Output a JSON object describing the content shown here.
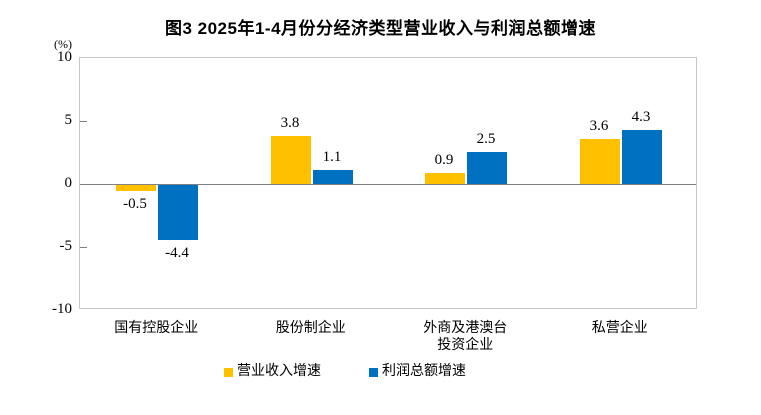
{
  "title": "图3 2025年1-4月份分经济类型营业收入与利润总额增速",
  "y_axis": {
    "unit_label": "(%)"
  },
  "chart_data": {
    "type": "bar",
    "title": "图3 2025年1-4月份分经济类型营业收入与利润总额增速",
    "categories": [
      "国有控股企业",
      "股份制企业",
      "外商及港澳台\n投资企业",
      "私营企业"
    ],
    "series": [
      {
        "name": "营业收入增速",
        "color": "#FFC000",
        "values": [
          -0.5,
          3.8,
          0.9,
          3.6
        ]
      },
      {
        "name": "利润总额增速",
        "color": "#0070C0",
        "values": [
          -4.4,
          1.1,
          2.5,
          4.3
        ]
      }
    ],
    "xlabel": "",
    "ylabel": "(%)",
    "ylim": [
      -10,
      10
    ],
    "yticks": [
      10,
      5,
      0,
      -5,
      -10
    ],
    "grid": false,
    "data_labels": true,
    "legend_position": "bottom",
    "colors": {
      "series_revenue": "#FFC000",
      "series_profit": "#0070C0",
      "zero_line": "#808080",
      "plot_border": "#C6C6C6",
      "text": "#000000"
    }
  }
}
